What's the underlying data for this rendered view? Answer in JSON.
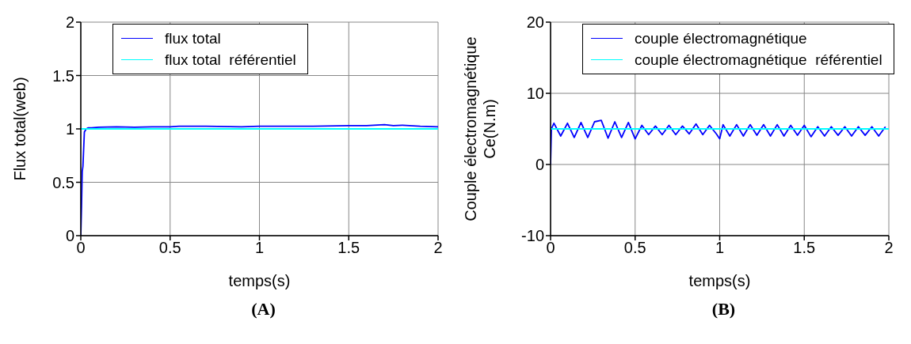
{
  "chart_data": [
    {
      "type": "line",
      "xlabel": "temps(s)",
      "ylabel": "Flux total(web)",
      "xlim": [
        0,
        2
      ],
      "xticks": [
        0,
        0.5,
        1,
        1.5,
        2
      ],
      "ylim": [
        0,
        2
      ],
      "yticks": [
        0,
        0.5,
        1,
        1.5,
        2
      ],
      "grid": true,
      "legend": "top",
      "annotations": [
        "(A)"
      ],
      "series": [
        {
          "name": "flux total",
          "color": "#0000ff",
          "x": [
            0,
            0.004,
            0.008,
            0.012,
            0.02,
            0.03,
            0.04,
            0.06,
            0.1,
            0.2,
            0.3,
            0.4,
            0.5,
            0.55,
            0.7,
            0.9,
            1.0,
            1.1,
            1.3,
            1.5,
            1.6,
            1.7,
            1.75,
            1.8,
            1.9,
            2.0
          ],
          "values": [
            0,
            0.27,
            0.6,
            0.65,
            0.97,
            1.0,
            1.01,
            1.01,
            1.015,
            1.02,
            1.015,
            1.02,
            1.02,
            1.025,
            1.025,
            1.02,
            1.025,
            1.025,
            1.025,
            1.03,
            1.03,
            1.04,
            1.03,
            1.035,
            1.025,
            1.02
          ]
        },
        {
          "name": "flux total  référentiel",
          "color": "#00ffff",
          "x": [
            0,
            2
          ],
          "values": [
            1,
            1
          ]
        }
      ]
    },
    {
      "type": "line",
      "xlabel": "temps(s)",
      "ylabel": "Couple électromagnétique\nCe(N.m)",
      "xlim": [
        0,
        2
      ],
      "xticks": [
        0,
        0.5,
        1,
        1.5,
        2
      ],
      "ylim": [
        -10,
        20
      ],
      "yticks": [
        -10,
        0,
        10,
        20
      ],
      "grid": true,
      "legend": "top",
      "annotations": [
        "(B)"
      ],
      "series": [
        {
          "name": "couple électromagnétique",
          "color": "#0000ff",
          "x": [
            0,
            0.005,
            0.02,
            0.06,
            0.1,
            0.14,
            0.18,
            0.22,
            0.26,
            0.3,
            0.34,
            0.38,
            0.42,
            0.46,
            0.5,
            0.54,
            0.58,
            0.62,
            0.66,
            0.7,
            0.74,
            0.78,
            0.82,
            0.86,
            0.9,
            0.94,
            0.98,
            1.0,
            1.02,
            1.06,
            1.1,
            1.14,
            1.18,
            1.22,
            1.26,
            1.3,
            1.34,
            1.38,
            1.42,
            1.46,
            1.5,
            1.54,
            1.58,
            1.62,
            1.66,
            1.7,
            1.74,
            1.78,
            1.82,
            1.86,
            1.9,
            1.94,
            1.98
          ],
          "values": [
            0,
            5,
            5.8,
            4.0,
            5.8,
            3.8,
            5.9,
            3.8,
            6.0,
            6.2,
            3.7,
            6.0,
            3.8,
            5.9,
            3.6,
            5.5,
            4.2,
            5.4,
            4.2,
            5.5,
            4.2,
            5.4,
            4.3,
            5.7,
            4.2,
            5.5,
            4.3,
            3.6,
            5.6,
            4.0,
            5.6,
            4.0,
            5.6,
            4.1,
            5.6,
            4.0,
            5.6,
            4.0,
            5.5,
            4.1,
            5.5,
            3.9,
            5.3,
            4.0,
            5.3,
            4.1,
            5.3,
            4.0,
            5.3,
            4.1,
            5.3,
            4.0,
            5.3
          ]
        },
        {
          "name": "couple électromagnétique  référentiel",
          "color": "#00ffff",
          "x": [
            0,
            2
          ],
          "values": [
            5,
            5
          ]
        }
      ]
    }
  ]
}
